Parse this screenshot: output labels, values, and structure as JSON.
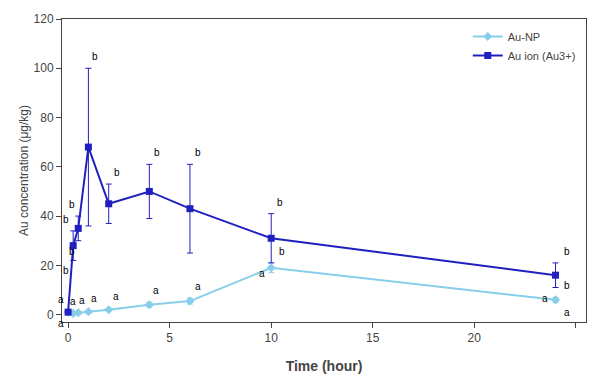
{
  "chart_data": {
    "type": "line",
    "x": [
      0,
      0.25,
      0.5,
      1,
      2,
      4,
      6,
      10,
      24
    ],
    "series": [
      {
        "name": "Au-NP",
        "color": "#87CEEB",
        "marker": "diamond",
        "values": [
          1.0,
          0.5,
          0.8,
          1.2,
          2.0,
          4.0,
          5.5,
          19.0,
          6.0
        ],
        "errors": [
          0.5,
          0.3,
          0.3,
          0.5,
          0.5,
          1.0,
          1.2,
          2.0,
          1.0
        ]
      },
      {
        "name": "Au ion (Au3+)",
        "color": "#2020C0",
        "marker": "square",
        "values": [
          1.0,
          28.0,
          35.0,
          68.0,
          45.0,
          50.0,
          43.0,
          31.0,
          16.0
        ],
        "errors": [
          0.5,
          6.0,
          5.0,
          32.0,
          8.0,
          11.0,
          18.0,
          10.0,
          5.0
        ]
      }
    ],
    "xlabel": "Time (hour)",
    "ylabel": "Au concentration (μg/kg)",
    "xlim": [
      -0.3,
      25.5
    ],
    "ylim": [
      -3,
      120
    ],
    "xticks": [
      0,
      5,
      10,
      15,
      20,
      {
        "value": 25,
        "label": ""
      }
    ],
    "yticks": [
      0,
      20,
      40,
      60,
      80,
      100,
      120
    ],
    "grid": false,
    "legend": "upper right",
    "annotations": [
      {
        "text": "a",
        "series": "Au-NP",
        "x": 0,
        "position": "above"
      },
      {
        "text": "a",
        "series": "Au-NP",
        "x": 0.25,
        "position": "above"
      },
      {
        "text": "a",
        "series": "Au-NP",
        "x": 0.5,
        "position": "above"
      },
      {
        "text": "a",
        "series": "Au-NP",
        "x": 1,
        "position": "above"
      },
      {
        "text": "a",
        "series": "Au-NP",
        "x": 2,
        "position": "above"
      },
      {
        "text": "a",
        "series": "Au-NP",
        "x": 4,
        "position": "above"
      },
      {
        "text": "a",
        "series": "Au-NP",
        "x": 6,
        "position": "above"
      },
      {
        "text": "b",
        "series": "Au-NP",
        "x": 10,
        "position": "above"
      },
      {
        "text": "b",
        "series": "Au-NP",
        "x": 24,
        "position": "above"
      },
      {
        "text": "a",
        "series": "Au-NP",
        "x": 24,
        "position": "below"
      },
      {
        "text": "b",
        "series": "Au ion (Au3+)",
        "x": 0.25,
        "position": "above"
      },
      {
        "text": "b",
        "series": "Au ion (Au3+)",
        "x": 0.5,
        "position": "above"
      },
      {
        "text": "b",
        "series": "Au ion (Au3+)",
        "x": 1,
        "position": "above"
      },
      {
        "text": "b",
        "series": "Au ion (Au3+)",
        "x": 2,
        "position": "above"
      },
      {
        "text": "b",
        "series": "Au ion (Au3+)",
        "x": 4,
        "position": "above"
      },
      {
        "text": "b",
        "series": "Au ion (Au3+)",
        "x": 6,
        "position": "above"
      },
      {
        "text": "b",
        "series": "Au ion (Au3+)",
        "x": 10,
        "position": "above"
      },
      {
        "text": "b",
        "series": "Au ion (Au3+)",
        "x": 24,
        "position": "above"
      },
      {
        "text": "a",
        "series": "Au ion (Au3+)",
        "x": 0,
        "position": "below"
      },
      {
        "text": "b",
        "series": "Au ion (Au3+)",
        "x": 0.25,
        "position": "below"
      },
      {
        "text": "b",
        "series": "Au ion (Au3+)",
        "x": 0.5,
        "position": "below"
      },
      {
        "text": "a",
        "series": "Au ion (Au3+)",
        "x": 10,
        "position": "below"
      },
      {
        "text": "a",
        "series": "Au ion (Au3+)",
        "x": 24,
        "position": "below"
      }
    ]
  }
}
